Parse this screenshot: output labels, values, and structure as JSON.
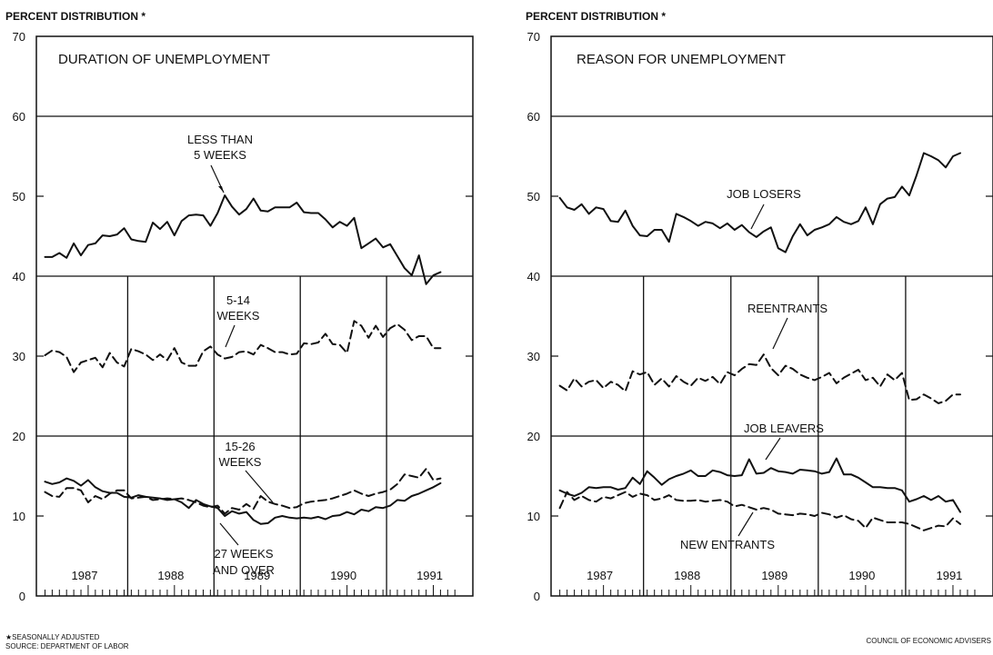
{
  "footnote": "★SEASONALLY ADJUSTED",
  "source": "SOURCE: DEPARTMENT OF LABOR",
  "credit": "COUNCIL OF ECONOMIC ADVISERS",
  "chart_data": [
    {
      "type": "line",
      "title": "DURATION OF UNEMPLOYMENT",
      "ylabel": "PERCENT DISTRIBUTION *",
      "ylim": [
        0,
        70
      ],
      "yticks": [
        "0",
        "10",
        "20",
        "30",
        "40",
        "50",
        "60",
        "70"
      ],
      "xticks": [
        "1987",
        "1988",
        "1989",
        "1990",
        "1991"
      ],
      "x_start": "1987-01",
      "x_end": "1991-09",
      "grid": "horizontal lines at 20, 40 and 60; vertical dividers at year boundaries",
      "series": [
        {
          "name": "LESS THAN 5 WEEKS",
          "style": "solid",
          "values": [
            42.4,
            42.4,
            42.9,
            42.3,
            44.1,
            42.6,
            43.9,
            44.1,
            45.1,
            45.0,
            45.2,
            46.0,
            44.6,
            44.4,
            44.3,
            46.7,
            45.9,
            46.8,
            45.1,
            46.9,
            47.6,
            47.7,
            47.6,
            46.3,
            47.9,
            50.1,
            48.7,
            47.7,
            48.4,
            49.7,
            48.2,
            48.1,
            48.6,
            48.6,
            48.6,
            49.2,
            48.0,
            47.9,
            47.9,
            47.1,
            46.1,
            46.8,
            46.3,
            47.3,
            43.5,
            44.1,
            44.7,
            43.6,
            44.0,
            42.5,
            41.0,
            40.1,
            42.6,
            39.0,
            40.1,
            40.5
          ]
        },
        {
          "name": "5-14 WEEKS",
          "style": "dashed",
          "values": [
            30.1,
            30.7,
            30.5,
            29.9,
            28.0,
            29.2,
            29.5,
            29.8,
            28.6,
            30.4,
            29.2,
            28.7,
            30.9,
            30.6,
            30.2,
            29.5,
            30.2,
            29.5,
            31.0,
            29.2,
            28.8,
            28.8,
            30.6,
            31.2,
            30.2,
            29.7,
            29.9,
            30.5,
            30.6,
            30.2,
            31.4,
            31.0,
            30.5,
            30.5,
            30.2,
            30.3,
            31.6,
            31.5,
            31.7,
            32.8,
            31.5,
            31.4,
            30.4,
            34.4,
            33.8,
            32.3,
            33.8,
            32.4,
            33.5,
            34.0,
            33.3,
            32.0,
            32.5,
            32.5,
            31.0,
            31.0
          ]
        },
        {
          "name": "15-26 WEEKS",
          "style": "dashed",
          "values": [
            13.0,
            12.5,
            12.4,
            13.5,
            13.5,
            13.2,
            11.7,
            12.5,
            12.1,
            12.8,
            13.2,
            13.2,
            12.2,
            12.3,
            12.4,
            12.0,
            12.1,
            12.2,
            12.1,
            12.2,
            12.0,
            11.7,
            11.3,
            11.1,
            11.3,
            10.3,
            11.0,
            10.8,
            11.5,
            10.9,
            12.5,
            11.8,
            11.5,
            11.3,
            11.0,
            11.1,
            11.6,
            11.8,
            11.9,
            12.0,
            12.2,
            12.5,
            12.8,
            13.2,
            12.8,
            12.5,
            12.8,
            13.0,
            13.3,
            14.0,
            15.2,
            15.0,
            14.8,
            15.9,
            14.5,
            14.7
          ]
        },
        {
          "name": "27 WEEKS AND OVER",
          "style": "solid",
          "values": [
            14.3,
            14.0,
            14.2,
            14.7,
            14.4,
            13.8,
            14.5,
            13.6,
            13.1,
            12.9,
            12.9,
            12.4,
            12.3,
            12.6,
            12.4,
            12.3,
            12.2,
            12.0,
            12.1,
            11.7,
            11.0,
            12.0,
            11.5,
            11.2,
            11.0,
            10.0,
            10.6,
            10.3,
            10.5,
            9.5,
            9.0,
            9.1,
            9.8,
            10.0,
            9.8,
            9.7,
            9.8,
            9.7,
            9.9,
            9.6,
            10.0,
            10.1,
            10.5,
            10.2,
            10.8,
            10.6,
            11.1,
            11.0,
            11.3,
            12.0,
            11.9,
            12.5,
            12.8,
            13.2,
            13.6,
            14.1
          ]
        }
      ],
      "annotations": [
        "LESS THAN",
        "5 WEEKS",
        "5-14",
        "WEEKS",
        "15-26",
        "WEEKS",
        "27 WEEKS",
        "AND OVER"
      ]
    },
    {
      "type": "line",
      "title": "REASON FOR UNEMPLOYMENT",
      "ylabel": "PERCENT DISTRIBUTION *",
      "ylim": [
        0,
        70
      ],
      "yticks": [
        "0",
        "10",
        "20",
        "30",
        "40",
        "50",
        "60",
        "70"
      ],
      "xticks": [
        "1987",
        "1988",
        "1989",
        "1990",
        "1991"
      ],
      "x_start": "1987-01",
      "x_end": "1991-09",
      "grid": "horizontal lines at 20, 40 and 60; vertical dividers at year boundaries",
      "series": [
        {
          "name": "JOB LOSERS",
          "style": "solid",
          "values": [
            49.8,
            48.6,
            48.3,
            49.0,
            47.8,
            48.6,
            48.4,
            46.9,
            46.8,
            48.2,
            46.3,
            45.1,
            45.0,
            45.8,
            45.8,
            44.3,
            47.8,
            47.4,
            46.9,
            46.3,
            46.8,
            46.6,
            46.0,
            46.6,
            45.8,
            46.4,
            45.5,
            44.9,
            45.6,
            46.1,
            43.5,
            43.0,
            45.0,
            46.5,
            45.1,
            45.8,
            46.1,
            46.5,
            47.4,
            46.8,
            46.5,
            46.9,
            48.6,
            46.5,
            49.0,
            49.7,
            49.9,
            51.2,
            50.1,
            52.6,
            55.4,
            55.0,
            54.5,
            53.6,
            55.0,
            55.4
          ]
        },
        {
          "name": "REENTRANTS",
          "style": "dashed",
          "values": [
            26.3,
            25.7,
            27.2,
            26.2,
            26.8,
            27.0,
            26.0,
            26.8,
            26.4,
            25.6,
            28.1,
            27.7,
            28.0,
            26.4,
            27.2,
            26.2,
            27.5,
            26.8,
            26.3,
            27.3,
            26.9,
            27.4,
            26.5,
            28.0,
            27.6,
            28.4,
            29.0,
            28.9,
            30.2,
            28.5,
            27.6,
            28.8,
            28.4,
            27.7,
            27.3,
            27.0,
            27.4,
            27.9,
            26.6,
            27.3,
            27.8,
            28.3,
            27.0,
            27.3,
            26.2,
            27.7,
            27.0,
            27.9,
            24.5,
            24.6,
            25.2,
            24.7,
            24.1,
            24.4,
            25.2,
            25.2
          ]
        },
        {
          "name": "JOB LEAVERS",
          "style": "solid",
          "values": [
            13.2,
            12.8,
            12.5,
            12.9,
            13.6,
            13.5,
            13.6,
            13.6,
            13.3,
            13.5,
            14.8,
            14.0,
            15.6,
            14.8,
            13.9,
            14.6,
            15.0,
            15.3,
            15.7,
            15.0,
            15.0,
            15.7,
            15.5,
            15.1,
            15.0,
            15.1,
            17.1,
            15.3,
            15.4,
            16.0,
            15.6,
            15.5,
            15.3,
            15.8,
            15.7,
            15.6,
            15.3,
            15.5,
            17.2,
            15.2,
            15.2,
            14.8,
            14.2,
            13.6,
            13.6,
            13.5,
            13.5,
            13.2,
            11.8,
            12.1,
            12.5,
            12.0,
            12.5,
            11.8,
            12.0,
            10.5
          ]
        },
        {
          "name": "NEW ENTRANTS",
          "style": "dashed",
          "values": [
            11.0,
            13.0,
            12.0,
            12.5,
            12.0,
            11.8,
            12.4,
            12.2,
            12.6,
            13.0,
            12.4,
            12.8,
            12.6,
            12.0,
            12.2,
            12.6,
            12.0,
            11.9,
            11.9,
            12.0,
            11.8,
            11.9,
            12.0,
            11.8,
            11.2,
            11.4,
            11.1,
            10.8,
            11.0,
            10.8,
            10.3,
            10.2,
            10.1,
            10.3,
            10.2,
            10.0,
            10.4,
            10.2,
            9.8,
            10.1,
            9.6,
            9.4,
            8.5,
            9.8,
            9.5,
            9.2,
            9.2,
            9.2,
            9.0,
            8.6,
            8.2,
            8.5,
            8.8,
            8.7,
            9.7,
            9.0
          ]
        }
      ],
      "annotations": [
        "JOB LOSERS",
        "REENTRANTS",
        "JOB LEAVERS",
        "NEW ENTRANTS"
      ]
    }
  ]
}
